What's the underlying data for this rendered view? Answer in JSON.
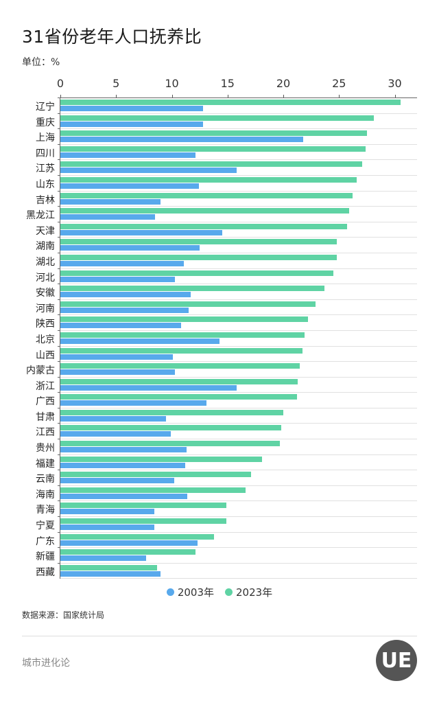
{
  "title": "31省份老年人口抚养比",
  "unit": "单位：%",
  "source": "数据来源：国家统计局",
  "brand": "城市进化论",
  "logo_text": "UE",
  "legend": [
    {
      "label": "2003年",
      "color": "#58a9ec"
    },
    {
      "label": "2023年",
      "color": "#5fd3a4"
    }
  ],
  "x_ticks": [
    "0",
    "5",
    "10",
    "15",
    "20",
    "25",
    "30"
  ],
  "chart_data": {
    "type": "bar",
    "orientation": "horizontal",
    "title": "31省份老年人口抚养比",
    "xlabel": "",
    "ylabel": "",
    "unit": "%",
    "xlim": [
      0,
      32
    ],
    "grid": true,
    "legend_position": "bottom",
    "categories": [
      "辽宁",
      "重庆",
      "上海",
      "四川",
      "江苏",
      "山东",
      "吉林",
      "黑龙江",
      "天津",
      "湖南",
      "湖北",
      "河北",
      "安徽",
      "河南",
      "陕西",
      "北京",
      "山西",
      "内蒙古",
      "浙江",
      "广西",
      "甘肃",
      "江西",
      "贵州",
      "福建",
      "云南",
      "海南",
      "青海",
      "宁夏",
      "广东",
      "新疆",
      "西藏"
    ],
    "series": [
      {
        "name": "2023年",
        "color": "#5fd3a4",
        "values": [
          30.5,
          28.1,
          27.5,
          27.4,
          27.1,
          26.6,
          26.2,
          25.9,
          25.7,
          24.8,
          24.8,
          24.5,
          23.7,
          22.9,
          22.2,
          21.9,
          21.7,
          21.5,
          21.3,
          21.2,
          20.0,
          19.8,
          19.7,
          18.1,
          17.1,
          16.6,
          14.9,
          14.9,
          13.8,
          12.1,
          8.7
        ]
      },
      {
        "name": "2003年",
        "color": "#58a9ec",
        "values": [
          12.8,
          12.8,
          21.8,
          12.1,
          15.8,
          12.4,
          9.0,
          8.5,
          14.5,
          12.5,
          11.1,
          10.3,
          11.7,
          11.5,
          10.8,
          14.3,
          10.1,
          10.3,
          15.8,
          13.1,
          9.5,
          9.9,
          11.3,
          11.2,
          10.2,
          11.4,
          8.4,
          8.4,
          12.3,
          7.7,
          9.0
        ]
      }
    ],
    "source": "数据来源：国家统计局"
  }
}
